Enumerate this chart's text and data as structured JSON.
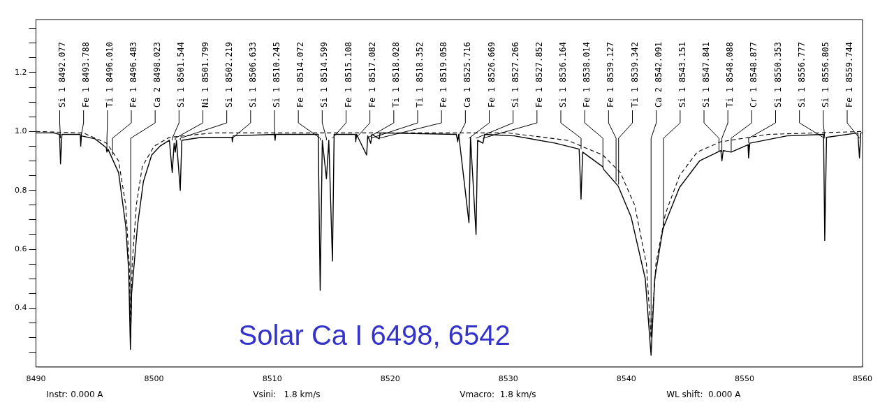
{
  "chart_data": {
    "type": "line",
    "title": "Solar Ca I 6498, 6542",
    "grid": false,
    "legend": false,
    "marker": "none",
    "xlim": [
      8490,
      8560
    ],
    "xticks": [
      8490,
      8500,
      8510,
      8520,
      8530,
      8540,
      8550,
      8560
    ],
    "ylim": [
      0.2,
      1.38
    ],
    "yticks": [
      {
        "value": 0.25,
        "label": null
      },
      {
        "value": 0.3,
        "label": null
      },
      {
        "value": 0.35,
        "label": null
      },
      0.4,
      {
        "value": 0.45,
        "label": null
      },
      {
        "value": 0.5,
        "label": null
      },
      {
        "value": 0.55,
        "label": null
      },
      0.6,
      {
        "value": 0.65,
        "label": null
      },
      {
        "value": 0.7,
        "label": null
      },
      {
        "value": 0.75,
        "label": null
      },
      0.8,
      {
        "value": 0.85,
        "label": null
      },
      {
        "value": 0.9,
        "label": null
      },
      {
        "value": 0.95,
        "label": null
      },
      {
        "value": 1,
        "label": "1.0"
      },
      {
        "value": 1.05,
        "label": null
      },
      {
        "value": 1.1,
        "label": null
      },
      {
        "value": 1.15,
        "label": null
      },
      1.2,
      {
        "value": 1.25,
        "label": null
      },
      {
        "value": 1.3,
        "label": null
      },
      {
        "value": 1.35,
        "label": null
      }
    ],
    "series": [
      {
        "color": "#000000",
        "line_style": "solid",
        "x": [
          8490,
          8491.5,
          8492,
          8492.08,
          8492.2,
          8493,
          8493.75,
          8493.79,
          8493.85,
          8495,
          8495.95,
          8496.01,
          8496.1,
          8497,
          8497.6,
          8497.85,
          8498,
          8498.1,
          8498.6,
          8499.1,
          8499.8,
          8500.5,
          8501.3,
          8501.54,
          8501.7,
          8501.8,
          8501.9,
          8502.22,
          8502.35,
          8504,
          8506.6,
          8506.63,
          8506.7,
          8510.2,
          8510.25,
          8510.3,
          8513.9,
          8514.07,
          8514.25,
          8514.6,
          8514.8,
          8515.11,
          8515.25,
          8517.05,
          8517.08,
          8517.15,
          8518,
          8518.1,
          8518.35,
          8518.45,
          8519.06,
          8519.15,
          8525.6,
          8525.72,
          8525.8,
          8526.67,
          8526.8,
          8527.27,
          8527.4,
          8527.85,
          8528,
          8530.5,
          8534,
          8536,
          8536.16,
          8536.3,
          8538,
          8538.1,
          8539.3,
          8540.4,
          8541.6,
          8542.09,
          8542.4,
          8543.1,
          8544.5,
          8546.2,
          8548,
          8548.09,
          8548.2,
          8548.88,
          8550.3,
          8550.35,
          8550.45,
          8553.6,
          8556.7,
          8556.8,
          8556.95,
          8559.6,
          8559.74,
          8559.85,
          8560
        ],
        "values": [
          0.995,
          0.995,
          0.99,
          0.89,
          0.99,
          0.99,
          0.99,
          0.95,
          0.985,
          0.975,
          0.945,
          0.93,
          0.94,
          0.86,
          0.68,
          0.53,
          0.26,
          0.45,
          0.68,
          0.83,
          0.92,
          0.95,
          0.97,
          0.86,
          0.96,
          0.93,
          0.97,
          0.8,
          0.97,
          0.98,
          0.98,
          0.965,
          0.985,
          0.99,
          0.97,
          0.99,
          0.99,
          0.46,
          0.97,
          0.84,
          0.97,
          0.56,
          0.99,
          0.99,
          0.965,
          0.99,
          0.92,
          0.985,
          0.96,
          0.99,
          0.975,
          0.995,
          0.99,
          0.965,
          0.99,
          0.69,
          0.98,
          0.65,
          0.97,
          0.96,
          0.99,
          0.985,
          0.96,
          0.94,
          0.77,
          0.93,
          0.88,
          0.87,
          0.815,
          0.71,
          0.5,
          0.24,
          0.5,
          0.67,
          0.81,
          0.9,
          0.935,
          0.9,
          0.935,
          0.93,
          0.955,
          0.91,
          0.96,
          0.985,
          0.99,
          0.63,
          0.98,
          0.995,
          0.91,
          0.995,
          0.995
        ]
      },
      {
        "color": "#000000",
        "line_style": "dashed",
        "x": [
          8490,
          8494,
          8496,
          8497,
          8497.6,
          8497.9,
          8498.02,
          8498.15,
          8498.5,
          8499,
          8500,
          8501.3,
          8505,
          8530,
          8535,
          8538,
          8539.5,
          8540.7,
          8541.7,
          8542.09,
          8542.5,
          8543.3,
          8544.5,
          8546,
          8548,
          8552,
          8560
        ],
        "values": [
          1,
          0.995,
          0.96,
          0.9,
          0.75,
          0.55,
          0.3,
          0.55,
          0.75,
          0.88,
          0.95,
          0.98,
          0.995,
          0.995,
          0.97,
          0.92,
          0.86,
          0.75,
          0.55,
          0.3,
          0.55,
          0.72,
          0.85,
          0.93,
          0.965,
          0.99,
          1
        ]
      }
    ],
    "annotations": [
      {
        "text": "Si 1 8492.077",
        "x": 8492.077,
        "y": 0.99
      },
      {
        "text": "Fe 1 8493.788",
        "x": 8493.788,
        "y": 0.99
      },
      {
        "text": "Ti 1 8496.010",
        "x": 8496.01,
        "y": 0.94
      },
      {
        "text": "Fe 1 8496.483",
        "x": 8496.483,
        "y": 0.92
      },
      {
        "text": "Ca 2 8498.023",
        "x": 8498.023,
        "y": 0.3
      },
      {
        "text": "Si 1 8501.544",
        "x": 8501.544,
        "y": 0.97
      },
      {
        "text": "Ni 1 8501.799",
        "x": 8501.799,
        "y": 0.97
      },
      {
        "text": "Si 1 8502.219",
        "x": 8502.219,
        "y": 0.97
      },
      {
        "text": "Si 1 8506.633",
        "x": 8506.633,
        "y": 0.98
      },
      {
        "text": "Si 1 8510.245",
        "x": 8510.245,
        "y": 0.99
      },
      {
        "text": "Fe 1 8514.072",
        "x": 8514.072,
        "y": 0.97
      },
      {
        "text": "Si 1 8514.599",
        "x": 8514.599,
        "y": 0.97
      },
      {
        "text": "Fe 1 8515.108",
        "x": 8515.108,
        "y": 0.99
      },
      {
        "text": "Fe 1 8517.082",
        "x": 8517.082,
        "y": 0.99
      },
      {
        "text": "Ti 1 8518.028",
        "x": 8518.028,
        "y": 0.99
      },
      {
        "text": "Ti 1 8518.352",
        "x": 8518.352,
        "y": 0.99
      },
      {
        "text": "Fe 1 8519.058",
        "x": 8519.058,
        "y": 0.99
      },
      {
        "text": "Ca 1 8525.716",
        "x": 8525.716,
        "y": 0.99
      },
      {
        "text": "Fe 1 8526.669",
        "x": 8526.669,
        "y": 0.98
      },
      {
        "text": "Si 1 8527.266",
        "x": 8527.266,
        "y": 0.98
      },
      {
        "text": "Fe 1 8527.852",
        "x": 8527.852,
        "y": 0.98
      },
      {
        "text": "Si 1 8536.164",
        "x": 8536.164,
        "y": 0.94
      },
      {
        "text": "Fe 1 8538.014",
        "x": 8538.014,
        "y": 0.88
      },
      {
        "text": "Fe 1 8539.127",
        "x": 8539.127,
        "y": 0.83
      },
      {
        "text": "Ti 1 8539.342",
        "x": 8539.342,
        "y": 0.82
      },
      {
        "text": "Ca 2 8542.091",
        "x": 8542.091,
        "y": 0.3
      },
      {
        "text": "Si 1 8543.151",
        "x": 8543.151,
        "y": 0.67
      },
      {
        "text": "Si 1 8547.841",
        "x": 8547.841,
        "y": 0.93
      },
      {
        "text": "Ti 1 8548.088",
        "x": 8548.088,
        "y": 0.93
      },
      {
        "text": "Cr 1 8548.877",
        "x": 8548.877,
        "y": 0.93
      },
      {
        "text": "Si 1 8550.353",
        "x": 8550.353,
        "y": 0.96
      },
      {
        "text": "Si 1 8556.777",
        "x": 8556.777,
        "y": 0.99
      },
      {
        "text": "Si 1 8556.805",
        "x": 8556.805,
        "y": 0.99
      },
      {
        "text": "Fe 1 8559.744",
        "x": 8559.744,
        "y": 0.995
      },
      "Instr: 0.000 A",
      "Vsini:   1.8 km/s",
      "Vmacro:  1.8 km/s",
      "WL shift:  0.000 A"
    ]
  }
}
